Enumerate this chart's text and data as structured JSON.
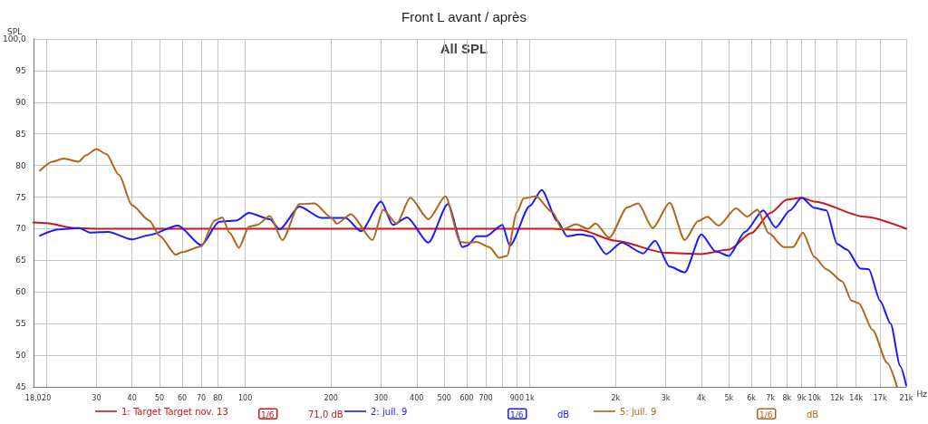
{
  "chart_data": {
    "type": "line",
    "title": "Front L avant / après",
    "subtitle": "All SPL",
    "ylabel": "SPL",
    "log": "x",
    "grid": true,
    "legend": "bottom",
    "marker": "none",
    "line_style": "solid",
    "xlim": [
      18,
      21000
    ],
    "xticks": [
      {
        "value": 18,
        "label": "18,0"
      },
      20,
      30,
      40,
      50,
      60,
      70,
      80,
      {
        "value": 800,
        "label": null
      },
      100,
      200,
      300,
      400,
      500,
      600,
      700,
      900,
      {
        "value": 1000,
        "label": "1k"
      },
      {
        "value": 2000,
        "label": "2k"
      },
      {
        "value": 3000,
        "label": "3k"
      },
      {
        "value": 4000,
        "label": "4k"
      },
      {
        "value": 5000,
        "label": "5k"
      },
      {
        "value": 6000,
        "label": "6k"
      },
      {
        "value": 7000,
        "label": "7k"
      },
      {
        "value": 8000,
        "label": "8k"
      },
      {
        "value": 9000,
        "label": "9k"
      },
      {
        "value": 10000,
        "label": "10k"
      },
      {
        "value": 12000,
        "label": "12k"
      },
      {
        "value": 14000,
        "label": "14k"
      },
      {
        "value": 17000,
        "label": "17k"
      },
      {
        "value": 21000,
        "label": "21k"
      }
    ],
    "xlabel": "Hz",
    "ylim": [
      45,
      100
    ],
    "yticks": [
      45,
      50,
      55,
      60,
      65,
      70,
      75,
      80,
      85,
      90,
      95,
      {
        "value": 100,
        "label": "100,0"
      }
    ],
    "annotations": [
      "1/6",
      "71,0 dB",
      "1/6",
      "dB",
      "1/6",
      "dB"
    ],
    "series": [
      {
        "name": "1: Target Target nov. 13",
        "color": "#c8181c",
        "x": [
          18,
          20,
          25,
          30,
          100,
          1200,
          1500,
          2000,
          3000,
          4000,
          5000,
          6000,
          7000,
          8000,
          9000,
          10000,
          15000,
          21000
        ],
        "values": [
          71,
          70.9,
          70.1,
          70,
          70,
          70,
          69.8,
          68.1,
          66.2,
          66,
          66.7,
          69.3,
          72.5,
          74.6,
          74.9,
          74.3,
          71.9,
          70
        ]
      },
      {
        "name": "2: juil. 9",
        "color": "#1a1aff",
        "x": [
          19,
          22,
          26,
          28.5,
          33,
          40,
          46,
          58,
          70,
          81,
          93,
          103,
          122,
          132,
          155,
          185,
          225,
          255,
          300,
          330,
          370,
          440,
          515,
          580,
          600,
          650,
          700,
          800,
          850,
          1000,
          1100,
          1250,
          1350,
          1500,
          1650,
          1850,
          2100,
          2500,
          2750,
          3100,
          3500,
          4000,
          4500,
          5000,
          5700,
          6600,
          7300,
          8200,
          9000,
          10000,
          11000,
          12000,
          13000,
          14500,
          15500,
          17000,
          18500,
          20000,
          21000
        ],
        "values": [
          68.9,
          69.9,
          70.1,
          69.4,
          69.5,
          68.3,
          69,
          70.5,
          67.4,
          71.1,
          71.3,
          72.5,
          71.5,
          69.9,
          73.5,
          71.7,
          71.7,
          69.6,
          74.3,
          70.6,
          71.8,
          67.8,
          73.9,
          67.1,
          67.3,
          68.8,
          68.8,
          70.6,
          67.3,
          73.6,
          76.1,
          71.2,
          68.8,
          69.1,
          68.8,
          66,
          67.8,
          66.1,
          68.1,
          64,
          63.1,
          69.1,
          66.4,
          65.7,
          69.5,
          72.9,
          70.2,
          72.9,
          74.9,
          73.3,
          72.9,
          67.6,
          66.7,
          63.7,
          63.6,
          58.6,
          55,
          48.3,
          45.2
        ]
      },
      {
        "name": "5: juil. 9",
        "color": "#b0651a",
        "x": [
          19,
          21,
          23,
          26,
          27.5,
          30,
          32.5,
          36,
          40,
          46,
          50,
          57,
          60,
          70,
          78,
          83,
          88,
          95,
          103,
          110,
          122,
          135,
          155,
          175,
          200,
          210,
          235,
          280,
          305,
          340,
          380,
          440,
          505,
          570,
          600,
          650,
          720,
          780,
          830,
          900,
          950,
          1050,
          1200,
          1300,
          1450,
          1600,
          1700,
          1900,
          2200,
          2400,
          2700,
          3100,
          3500,
          3900,
          4200,
          4600,
          5300,
          5800,
          6300,
          6900,
          7800,
          8400,
          9100,
          10000,
          11000,
          12500,
          13500,
          14300,
          16000,
          18000,
          19500
        ],
        "values": [
          79.2,
          80.6,
          81.1,
          80.6,
          81.6,
          82.6,
          81.8,
          78.5,
          73.7,
          71.3,
          68.9,
          65.9,
          66.3,
          67.2,
          71.3,
          71.8,
          69.4,
          67,
          70.3,
          70.6,
          72,
          68.2,
          73.9,
          74,
          71.8,
          70.8,
          72.3,
          68.2,
          73,
          70.8,
          74.9,
          71.5,
          75.1,
          67.9,
          67.8,
          67.9,
          67.1,
          65.4,
          65.7,
          72.6,
          74.8,
          75.1,
          72.6,
          69.9,
          70.7,
          70,
          70.8,
          68.6,
          73.4,
          74,
          70.1,
          74.1,
          68.2,
          71.2,
          71.9,
          70.5,
          73.2,
          71.9,
          73,
          69.3,
          67.1,
          67.1,
          69.4,
          65.5,
          63.6,
          61.7,
          58.6,
          58.2,
          54,
          48.8,
          45
        ]
      }
    ]
  }
}
